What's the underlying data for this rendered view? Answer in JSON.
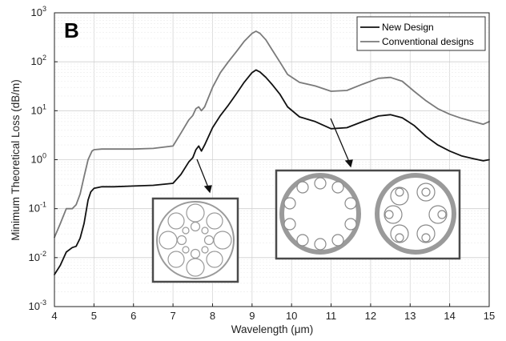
{
  "chart_data": {
    "type": "line",
    "panel_label": "B",
    "xlabel": "Wavelength (μm)",
    "ylabel": "Minimum Theoretical Loss (dB/m)",
    "xlim": [
      4,
      15
    ],
    "ylim": [
      0.001,
      1000
    ],
    "yscale": "log",
    "grid": true,
    "legend_position": "top-right",
    "x_ticks": [
      "4",
      "5",
      "6",
      "7",
      "8",
      "9",
      "10",
      "11",
      "12",
      "13",
      "14",
      "15"
    ],
    "y_ticks": [
      {
        "base": "10",
        "exp": "-3"
      },
      {
        "base": "10",
        "exp": "-2"
      },
      {
        "base": "10",
        "exp": "-1"
      },
      {
        "base": "10",
        "exp": "0"
      },
      {
        "base": "10",
        "exp": "1"
      },
      {
        "base": "10",
        "exp": "2"
      },
      {
        "base": "10",
        "exp": "3"
      }
    ],
    "series": [
      {
        "name": "New Design",
        "color": "#111111",
        "x": [
          4.0,
          4.15,
          4.3,
          4.45,
          4.55,
          4.65,
          4.75,
          4.85,
          4.92,
          5.0,
          5.2,
          5.5,
          6.0,
          6.5,
          7.0,
          7.2,
          7.4,
          7.5,
          7.58,
          7.65,
          7.72,
          7.8,
          8.0,
          8.2,
          8.4,
          8.6,
          8.8,
          9.0,
          9.1,
          9.2,
          9.35,
          9.5,
          9.7,
          9.9,
          10.2,
          10.6,
          11.0,
          11.4,
          11.8,
          12.2,
          12.5,
          12.8,
          13.1,
          13.4,
          13.7,
          14.0,
          14.3,
          14.6,
          14.85,
          15.0
        ],
        "y": [
          0.0045,
          0.007,
          0.013,
          0.016,
          0.017,
          0.025,
          0.05,
          0.15,
          0.22,
          0.26,
          0.28,
          0.28,
          0.29,
          0.3,
          0.33,
          0.5,
          0.9,
          1.1,
          1.6,
          1.9,
          1.5,
          2.0,
          4.5,
          8.0,
          13,
          22,
          38,
          60,
          68,
          62,
          48,
          35,
          22,
          12,
          7.5,
          6.0,
          4.3,
          4.5,
          6.0,
          7.8,
          8.3,
          7.2,
          5.0,
          3.0,
          2.0,
          1.5,
          1.2,
          1.05,
          0.95,
          1.0
        ]
      },
      {
        "name": "Conventional designs",
        "color": "#7a7a7a",
        "x": [
          4.0,
          4.15,
          4.3,
          4.45,
          4.55,
          4.65,
          4.75,
          4.85,
          4.95,
          5.0,
          5.2,
          5.5,
          6.0,
          6.5,
          7.0,
          7.2,
          7.4,
          7.5,
          7.58,
          7.65,
          7.72,
          7.8,
          8.0,
          8.2,
          8.4,
          8.6,
          8.8,
          9.0,
          9.1,
          9.2,
          9.35,
          9.5,
          9.7,
          9.9,
          10.2,
          10.6,
          11.0,
          11.4,
          11.8,
          12.2,
          12.5,
          12.8,
          13.1,
          13.4,
          13.7,
          14.0,
          14.3,
          14.6,
          14.85,
          15.0
        ],
        "y": [
          0.026,
          0.05,
          0.1,
          0.1,
          0.12,
          0.2,
          0.45,
          1.0,
          1.5,
          1.6,
          1.65,
          1.65,
          1.65,
          1.7,
          1.9,
          3.5,
          6.5,
          8,
          11,
          12,
          10,
          12,
          30,
          60,
          100,
          160,
          260,
          380,
          420,
          380,
          280,
          180,
          100,
          55,
          38,
          32,
          25,
          26,
          35,
          46,
          48,
          40,
          25,
          16,
          11,
          8.5,
          7.0,
          6.0,
          5.3,
          6.0
        ]
      }
    ]
  }
}
